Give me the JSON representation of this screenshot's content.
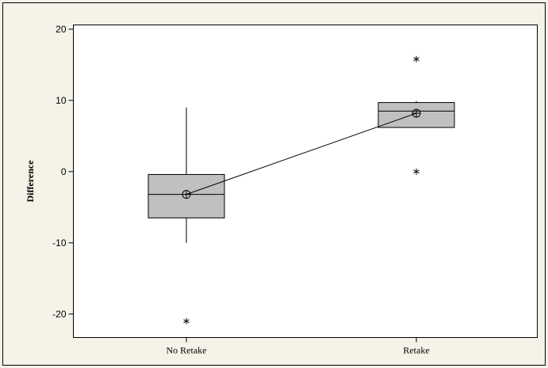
{
  "chart_data": {
    "type": "box",
    "title": "",
    "xlabel": "",
    "ylabel": "Difference",
    "ylim": [
      -23.3,
      20.6
    ],
    "yticks": [
      -20,
      -10,
      0,
      10,
      20
    ],
    "categories": [
      "No Retake",
      "Retake"
    ],
    "boxes": [
      {
        "category": "No Retake",
        "whisker_low": -10,
        "q1": -6.5,
        "median": -3.2,
        "q3": -0.4,
        "whisker_high": 9,
        "mean": -3.2,
        "outliers": [
          -21
        ]
      },
      {
        "category": "Retake",
        "whisker_low": 6.2,
        "q1": 6.2,
        "median": 8.5,
        "q3": 9.7,
        "whisker_high": 9.9,
        "mean": 8.2,
        "outliers": [
          15.8,
          0
        ]
      }
    ],
    "mean_connect_line": true,
    "grid": false,
    "legend": "none",
    "colors": {
      "box_fill": "#c0c0c0",
      "background": "#f5f2e8",
      "plot_bg": "#ffffff"
    }
  }
}
